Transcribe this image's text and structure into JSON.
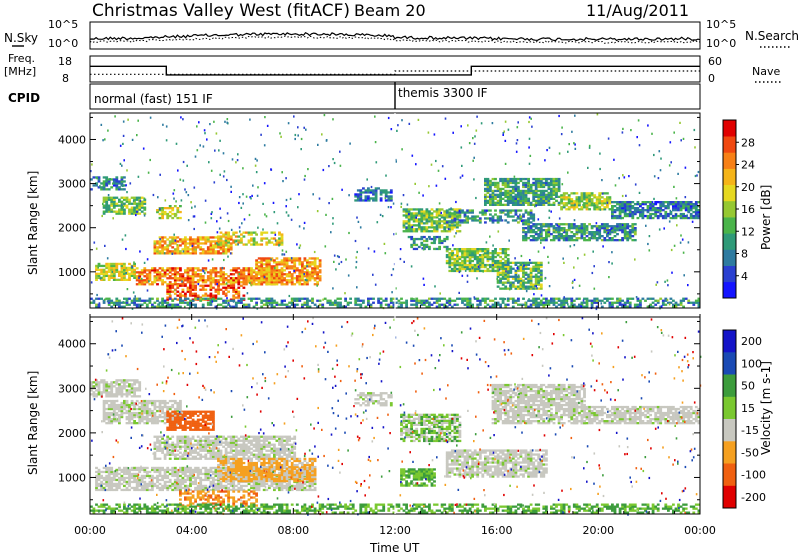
{
  "header": {
    "title": "Christmas Valley West (fitACF)",
    "beam": "Beam 20",
    "date": "11/Aug/2011"
  },
  "noise_panel": {
    "left_label": "N.Sky",
    "right_label": "N.Search",
    "ticks": [
      "10^5",
      "10^0"
    ],
    "scale": "log"
  },
  "freq_panel": {
    "left_label_top": "Freq.",
    "left_label_bottom": "[MHz]",
    "left_ticks": [
      18,
      8
    ],
    "right_ticks": [
      60,
      0
    ],
    "right_label": "Nave",
    "freq_steps": [
      {
        "start": 0,
        "end": 3,
        "mhz": 14.5
      },
      {
        "start": 3,
        "end": 15,
        "mhz": 9.7
      },
      {
        "start": 15,
        "end": 24,
        "mhz": 14.5
      }
    ],
    "nave_steps": [
      {
        "start": 0,
        "end": 3,
        "value": 21
      },
      {
        "start": 3,
        "end": 12,
        "value": 21
      },
      {
        "start": 12,
        "end": 15,
        "value": 30
      },
      {
        "start": 15,
        "end": 24,
        "value": 30
      }
    ]
  },
  "cpid": {
    "label": "CPID",
    "segments": [
      {
        "start": 0,
        "end": 12,
        "text": "normal (fast) 151 IF"
      },
      {
        "start": 12,
        "end": 24,
        "text": "themis 3300 IF"
      }
    ]
  },
  "chart_data": [
    {
      "type": "heatmap",
      "name": "power",
      "ylabel": "Slant Range [km]",
      "ylim": [
        180,
        4600
      ],
      "yticks": [
        1000,
        2000,
        3000,
        4000
      ],
      "colorbar_label": "Power [dB]",
      "colorbar_ticks": [
        28,
        24,
        20,
        16,
        12,
        8,
        4
      ],
      "colorbar_range": [
        0,
        32
      ],
      "colors": [
        "#1414ff",
        "#2a40d0",
        "#2e7ba0",
        "#2f9a78",
        "#4ab44a",
        "#96c832",
        "#e6d820",
        "#f5b418",
        "#f78016",
        "#f04810",
        "#e00000"
      ],
      "regions": [
        {
          "t0": 0.0,
          "t1": 1.4,
          "r0": 2850,
          "r1": 3150,
          "level": 0.25
        },
        {
          "t0": 0.5,
          "t1": 2.2,
          "r0": 2300,
          "r1": 2700,
          "level": 0.45
        },
        {
          "t0": 2.6,
          "t1": 3.6,
          "r0": 2200,
          "r1": 2500,
          "level": 0.55
        },
        {
          "t0": 2.5,
          "t1": 5.5,
          "r0": 1400,
          "r1": 1800,
          "level": 0.7
        },
        {
          "t0": 5.0,
          "t1": 7.5,
          "r0": 1600,
          "r1": 1900,
          "level": 0.6
        },
        {
          "t0": 0.2,
          "t1": 1.8,
          "r0": 800,
          "r1": 1200,
          "level": 0.55
        },
        {
          "t0": 1.8,
          "t1": 7.5,
          "r0": 700,
          "r1": 1100,
          "level": 0.75
        },
        {
          "t0": 6.5,
          "t1": 9.0,
          "r0": 700,
          "r1": 1300,
          "level": 0.72
        },
        {
          "t0": 3.0,
          "t1": 6.0,
          "r0": 350,
          "r1": 700,
          "level": 0.85
        },
        {
          "t0": 10.4,
          "t1": 11.8,
          "r0": 2600,
          "r1": 2900,
          "level": 0.2
        },
        {
          "t0": 12.3,
          "t1": 14.5,
          "r0": 1900,
          "r1": 2400,
          "level": 0.45
        },
        {
          "t0": 14.0,
          "t1": 17.5,
          "r0": 2100,
          "r1": 2400,
          "level": 0.3
        },
        {
          "t0": 12.5,
          "t1": 14.0,
          "r0": 1500,
          "r1": 1800,
          "level": 0.3
        },
        {
          "t0": 14.0,
          "t1": 16.5,
          "r0": 1000,
          "r1": 1500,
          "level": 0.45
        },
        {
          "t0": 16.0,
          "t1": 17.8,
          "r0": 600,
          "r1": 1200,
          "level": 0.4
        },
        {
          "t0": 15.5,
          "t1": 18.5,
          "r0": 2500,
          "r1": 3100,
          "level": 0.35
        },
        {
          "t0": 18.5,
          "t1": 20.5,
          "r0": 2400,
          "r1": 2800,
          "level": 0.5
        },
        {
          "t0": 17.0,
          "t1": 21.5,
          "r0": 1700,
          "r1": 2100,
          "level": 0.3
        },
        {
          "t0": 20.5,
          "t1": 24.0,
          "r0": 2200,
          "r1": 2600,
          "level": 0.25
        },
        {
          "t0": 0.0,
          "t1": 24.0,
          "r0": 190,
          "r1": 380,
          "level": 0.3
        }
      ]
    },
    {
      "type": "heatmap",
      "name": "velocity",
      "xlabel": "Time UT",
      "ylabel": "Slant Range [km]",
      "xlim": [
        0,
        24
      ],
      "xtick_labels": [
        "00:00",
        "04:00",
        "08:00",
        "12:00",
        "16:00",
        "20:00",
        "00:00"
      ],
      "ylim": [
        180,
        4600
      ],
      "yticks": [
        1000,
        2000,
        3000,
        4000
      ],
      "colorbar_label": "Velocity [m s-1]",
      "colorbar_ticks": [
        200,
        100,
        50,
        15,
        -15,
        -50,
        -100,
        -200
      ],
      "colors": [
        "#e00000",
        "#f06010",
        "#f5a020",
        "#c8c8c0",
        "#c8c8c0",
        "#7ac830",
        "#3c9c3c",
        "#1a4ab4",
        "#1414c8"
      ],
      "regions": [
        {
          "t0": 0.0,
          "t1": 2.0,
          "r0": 2800,
          "r1": 3200,
          "vel": 0
        },
        {
          "t0": 0.5,
          "t1": 3.6,
          "r0": 2200,
          "r1": 2700,
          "vel": 0
        },
        {
          "t0": 3.0,
          "t1": 4.8,
          "r0": 2050,
          "r1": 2500,
          "vel": -120
        },
        {
          "t0": 2.5,
          "t1": 8.0,
          "r0": 1400,
          "r1": 1900,
          "vel": 0
        },
        {
          "t0": 0.2,
          "t1": 8.8,
          "r0": 700,
          "r1": 1200,
          "vel": 0
        },
        {
          "t0": 5.0,
          "t1": 8.8,
          "r0": 900,
          "r1": 1400,
          "vel": -40
        },
        {
          "t0": 3.5,
          "t1": 6.5,
          "r0": 350,
          "r1": 700,
          "vel": -70
        },
        {
          "t0": 10.4,
          "t1": 11.8,
          "r0": 2600,
          "r1": 2900,
          "vel": 0
        },
        {
          "t0": 12.2,
          "t1": 14.5,
          "r0": 1800,
          "r1": 2400,
          "vel": 20
        },
        {
          "t0": 12.2,
          "t1": 13.5,
          "r0": 800,
          "r1": 1200,
          "vel": 35
        },
        {
          "t0": 14.0,
          "t1": 18.0,
          "r0": 1000,
          "r1": 1600,
          "vel": 0
        },
        {
          "t0": 15.8,
          "t1": 19.5,
          "r0": 2200,
          "r1": 3100,
          "vel": 0
        },
        {
          "t0": 19.0,
          "t1": 24.0,
          "r0": 2200,
          "r1": 2600,
          "vel": 0
        },
        {
          "t0": 0.0,
          "t1": 24.0,
          "r0": 190,
          "r1": 380,
          "vel": 35
        }
      ]
    }
  ]
}
